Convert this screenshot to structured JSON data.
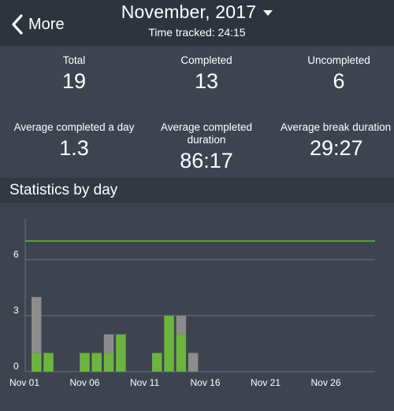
{
  "header": {
    "back_label": "More",
    "title": "November, 2017",
    "subtitle": "Time tracked: 24:15"
  },
  "stats": [
    {
      "label": "Total",
      "value": "19"
    },
    {
      "label": "Completed",
      "value": "13"
    },
    {
      "label": "Uncompleted",
      "value": "6"
    },
    {
      "label": "Average completed a day",
      "value": "1.3"
    },
    {
      "label": "Average completed duration",
      "value": "86:17"
    },
    {
      "label": "Average break duration",
      "value": "29:27"
    }
  ],
  "section": {
    "title": "Statistics by day"
  },
  "colors": {
    "completed": "#6db33f",
    "uncompleted": "#8c8c8c",
    "goal_line": "#6db33f",
    "grid": "#6b7280",
    "background": "#3d4450",
    "header": "#2e343e"
  },
  "chart_data": {
    "type": "bar",
    "stacked": true,
    "x_start_day": 1,
    "x_end_day": 30,
    "x_tick_labels": [
      "Nov 01",
      "Nov 06",
      "Nov 11",
      "Nov 16",
      "Nov 21",
      "Nov 26"
    ],
    "y_ticks": [
      0,
      3,
      6
    ],
    "ylim": [
      0,
      8.5
    ],
    "goal_line": 7,
    "series": [
      {
        "key": "completed",
        "values": [
          1,
          1,
          0,
          0,
          1,
          1,
          1,
          2,
          0,
          0,
          1,
          3,
          2,
          0,
          0,
          0,
          0,
          0,
          0,
          0,
          0,
          0,
          0,
          0,
          0,
          0,
          0,
          0,
          0,
          0
        ]
      },
      {
        "key": "uncompleted",
        "values": [
          3,
          0,
          0,
          0,
          0,
          0,
          1,
          0,
          0,
          0,
          0,
          0,
          1,
          1,
          0,
          0,
          0,
          0,
          0,
          0,
          0,
          0,
          0,
          0,
          0,
          0,
          0,
          0,
          0,
          0
        ]
      }
    ]
  }
}
